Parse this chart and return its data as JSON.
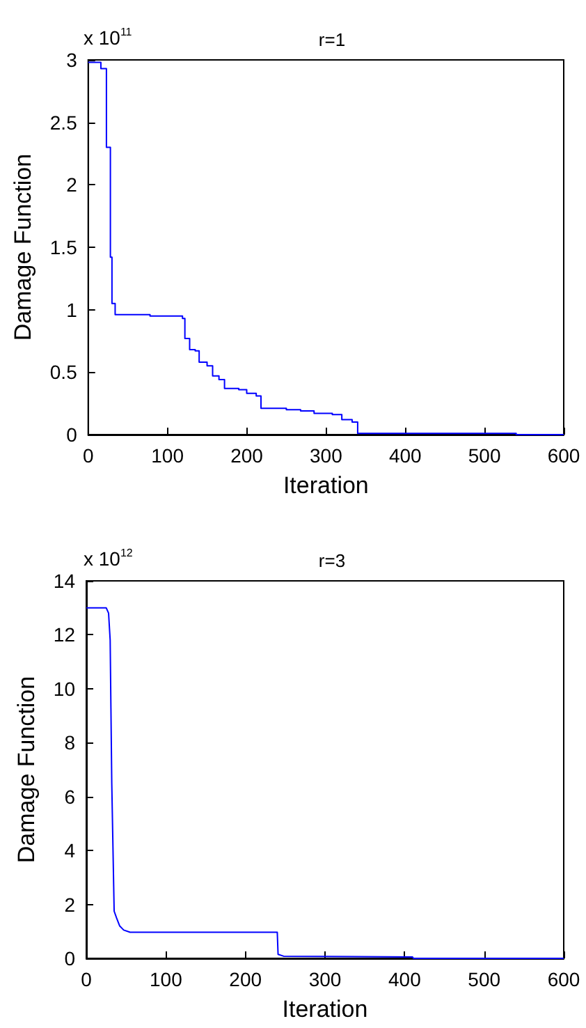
{
  "chart_data": [
    {
      "type": "step",
      "title": "r=1",
      "xlabel": "Iteration",
      "ylabel": "Damage Function",
      "annotations": [
        "x 10$^{11}$"
      ],
      "xlim": [
        0,
        600
      ],
      "xticks": [
        0,
        100,
        200,
        300,
        400,
        500,
        600
      ],
      "ylim": [
        0,
        3
      ],
      "yticks": [
        0,
        0.5,
        1,
        1.5,
        2,
        2.5,
        3
      ],
      "series": [
        {
          "color": "#0000ff",
          "x": [
            0,
            16,
            23,
            28,
            30,
            34,
            78,
            119,
            122,
            128,
            135,
            140,
            150,
            157,
            165,
            172,
            190,
            200,
            212,
            218,
            250,
            268,
            285,
            308,
            320,
            333,
            340,
            540,
            600
          ],
          "values": [
            2.98,
            2.93,
            2.3,
            1.42,
            1.05,
            0.96,
            0.95,
            0.93,
            0.77,
            0.68,
            0.67,
            0.58,
            0.55,
            0.47,
            0.44,
            0.37,
            0.36,
            0.33,
            0.31,
            0.21,
            0.2,
            0.19,
            0.17,
            0.16,
            0.12,
            0.1,
            0.01,
            0,
            0
          ]
        }
      ]
    },
    {
      "type": "line",
      "title": "r=3",
      "xlabel": "Iteration",
      "ylabel": "Damage Function",
      "annotations": [
        "x 10$^{12}$"
      ],
      "xlim": [
        0,
        600
      ],
      "xticks": [
        0,
        100,
        200,
        300,
        400,
        500,
        600
      ],
      "ylim": [
        0,
        14
      ],
      "yticks": [
        0,
        2,
        4,
        6,
        8,
        10,
        12,
        14
      ],
      "series": [
        {
          "color": "#0000ff",
          "x": [
            0,
            25,
            28,
            30,
            32,
            35,
            38,
            42,
            47,
            55,
            240,
            241,
            248,
            410,
            411,
            600
          ],
          "values": [
            13,
            13,
            12.8,
            11.8,
            6.5,
            1.75,
            1.5,
            1.2,
            1.05,
            0.97,
            0.97,
            0.15,
            0.08,
            0.05,
            0,
            0
          ]
        }
      ]
    }
  ]
}
